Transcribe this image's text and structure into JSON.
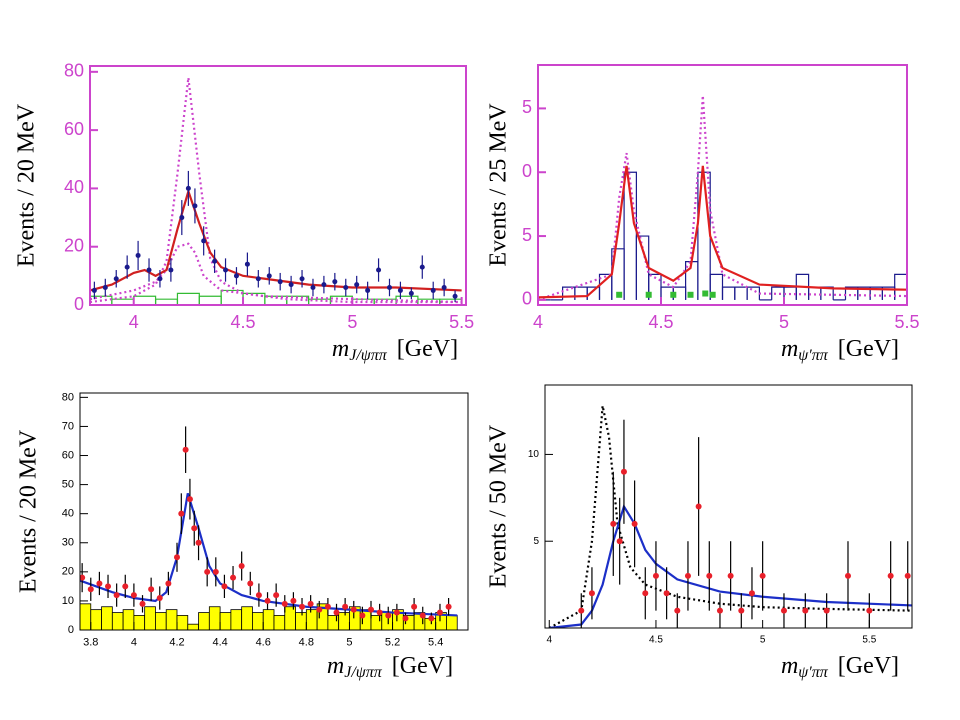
{
  "chart_data": [
    {
      "type": "scatter",
      "ylabel": "Events / 20 MeV",
      "xlabel": {
        "symbol": "m",
        "subscript": "J/ψππ",
        "unit": "[GeV]"
      },
      "xlim": [
        3.8,
        5.52
      ],
      "ylim": [
        0,
        82
      ],
      "xticks": [
        4,
        4.5,
        5,
        5.5
      ],
      "yticks": [
        0,
        20,
        40,
        60,
        80
      ],
      "frame_color": "#cc44cc",
      "tick_color": "#cc44cc",
      "series": [
        {
          "style": "histogram",
          "color": "#33bb33",
          "bins": [
            3.8,
            3.9,
            4,
            4.1,
            4.2,
            4.3,
            4.4,
            4.5,
            4.6,
            4.7,
            4.8,
            4.9,
            5,
            5.1,
            5.2,
            5.3,
            5.4,
            5.5
          ],
          "values": [
            3,
            2,
            3,
            2,
            4,
            3,
            5,
            4,
            3,
            3,
            2,
            3,
            2,
            2,
            3,
            2,
            2
          ]
        },
        {
          "style": "line",
          "color": "#cc44cc",
          "dash": "dotted",
          "x": [
            3.8,
            4,
            4.1,
            4.15,
            4.2,
            4.25,
            4.3,
            4.35,
            4.4,
            4.5,
            4.7,
            5,
            5.5
          ],
          "values": [
            1,
            3,
            7,
            15,
            45,
            78,
            45,
            16,
            8,
            4,
            2,
            1,
            1
          ]
        },
        {
          "style": "line",
          "color": "#cc44cc",
          "dash": "dotted",
          "x": [
            3.8,
            4,
            4.1,
            4.15,
            4.2,
            4.25,
            4.28,
            4.32,
            4.4,
            4.6,
            5,
            5.5
          ],
          "values": [
            2,
            5,
            8,
            12,
            20,
            21,
            18,
            10,
            5,
            3,
            2,
            1
          ]
        },
        {
          "style": "line",
          "color": "#d02020",
          "x": [
            3.8,
            3.9,
            4,
            4.05,
            4.1,
            4.15,
            4.2,
            4.25,
            4.3,
            4.35,
            4.4,
            4.5,
            4.6,
            4.8,
            5,
            5.2,
            5.5
          ],
          "values": [
            5,
            7,
            11,
            12,
            10,
            12,
            26,
            39,
            28,
            18,
            13,
            10,
            9,
            7,
            6,
            6,
            5
          ]
        },
        {
          "style": "points",
          "marker": "circle",
          "color": "#1a1a8c",
          "x": [
            3.82,
            3.87,
            3.92,
            3.97,
            4.02,
            4.07,
            4.12,
            4.17,
            4.22,
            4.25,
            4.28,
            4.32,
            4.37,
            4.42,
            4.47,
            4.52,
            4.57,
            4.62,
            4.67,
            4.72,
            4.77,
            4.82,
            4.87,
            4.92,
            4.97,
            5.02,
            5.07,
            5.12,
            5.17,
            5.22,
            5.27,
            5.32,
            5.37,
            5.42,
            5.47
          ],
          "values": [
            5,
            6,
            9,
            13,
            17,
            12,
            9,
            12,
            30,
            40,
            34,
            22,
            15,
            12,
            10,
            14,
            9,
            10,
            8,
            7,
            9,
            6,
            7,
            8,
            6,
            7,
            5,
            12,
            6,
            5,
            4,
            13,
            5,
            6,
            3
          ],
          "errors": [
            3,
            3,
            3,
            4,
            5,
            4,
            3,
            4,
            6,
            6,
            6,
            5,
            4,
            4,
            3,
            4,
            3,
            3,
            3,
            3,
            3,
            3,
            3,
            3,
            3,
            3,
            3,
            4,
            3,
            3,
            2,
            4,
            3,
            3,
            2
          ]
        }
      ]
    },
    {
      "type": "scatter",
      "ylabel": "Events / 25 MeV",
      "xlabel": {
        "symbol": "m",
        "subscript": "ψ′ππ",
        "unit": "[GeV]"
      },
      "xlim": [
        4,
        5.5
      ],
      "ylim": [
        -0.4,
        18.4
      ],
      "xticks": [
        4,
        4.5,
        5,
        5.5
      ],
      "yticks": [
        0,
        5,
        {
          "value": 10,
          "label": "0"
        },
        {
          "value": 15,
          "label": "5"
        }
      ],
      "frame_color": "#cc44cc",
      "tick_color": "#cc44cc",
      "series": [
        {
          "style": "histogram",
          "color": "#1a1a8c",
          "bins": [
            4,
            4.05,
            4.1,
            4.15,
            4.2,
            4.25,
            4.3,
            4.35,
            4.4,
            4.45,
            4.5,
            4.55,
            4.6,
            4.65,
            4.7,
            4.75,
            4.8,
            4.85,
            4.9,
            4.95,
            5,
            5.05,
            5.1,
            5.15,
            5.2,
            5.25,
            5.3,
            5.35,
            5.4,
            5.45,
            5.5
          ],
          "values": [
            0,
            0,
            1,
            1,
            1,
            2,
            4,
            10,
            5,
            2,
            1,
            1,
            3,
            10,
            2,
            1,
            1,
            1,
            0,
            1,
            1,
            2,
            1,
            1,
            0,
            1,
            1,
            1,
            1,
            2
          ]
        },
        {
          "style": "line",
          "color": "#cc44cc",
          "dash": "dotted",
          "x": [
            4,
            4.3,
            4.33,
            4.36,
            4.39,
            4.45,
            4.55,
            4.62,
            4.65,
            4.67,
            4.7,
            4.75,
            4.9,
            5.5
          ],
          "values": [
            0,
            2,
            8,
            11.5,
            7,
            2,
            1,
            3,
            10,
            16,
            7,
            2,
            0.5,
            0.3
          ]
        },
        {
          "style": "line",
          "color": "#e02020",
          "x": [
            4,
            4.2,
            4.3,
            4.33,
            4.36,
            4.39,
            4.45,
            4.55,
            4.62,
            4.65,
            4.67,
            4.7,
            4.75,
            4.9,
            5.2,
            5.5
          ],
          "values": [
            0.2,
            0.3,
            2,
            6,
            10.5,
            6,
            2.5,
            1.5,
            2.5,
            6,
            10.5,
            5,
            2.5,
            1.2,
            0.9,
            0.8
          ]
        },
        {
          "style": "points",
          "marker": "square",
          "color": "#33bb33",
          "x": [
            4.33,
            4.45,
            4.55,
            4.62,
            4.68,
            4.71
          ],
          "values": [
            0.4,
            0.4,
            0.4,
            0.4,
            0.5,
            0.4
          ]
        }
      ]
    },
    {
      "type": "scatter",
      "ylabel": "Events / 20 MeV",
      "xlabel": {
        "symbol": "m",
        "subscript": "J/ψππ",
        "unit": "[GeV]"
      },
      "xlim": [
        3.75,
        5.55
      ],
      "ylim": [
        0,
        81.5
      ],
      "xticks": [
        3.8,
        4,
        4.2,
        4.4,
        4.6,
        4.8,
        5,
        5.2,
        5.4
      ],
      "yticks": [
        0,
        10,
        20,
        30,
        40,
        50,
        60,
        70,
        80
      ],
      "frame_color": "#000000",
      "tick_color": "#000000",
      "series": [
        {
          "style": "histogram",
          "color": "#000000",
          "fill": "#ffff00",
          "bins": [
            3.75,
            3.8,
            3.85,
            3.9,
            3.95,
            4,
            4.05,
            4.1,
            4.15,
            4.2,
            4.25,
            4.3,
            4.35,
            4.4,
            4.45,
            4.5,
            4.55,
            4.6,
            4.65,
            4.7,
            4.75,
            4.8,
            4.85,
            4.9,
            4.95,
            5,
            5.05,
            5.1,
            5.15,
            5.2,
            5.25,
            5.3,
            5.35,
            5.4,
            5.45,
            5.5
          ],
          "values": [
            9,
            7,
            8,
            6,
            7,
            5,
            8,
            6,
            7,
            5,
            2,
            6,
            8,
            6,
            7,
            8,
            6,
            7,
            5,
            8,
            6,
            7,
            9,
            5,
            6,
            8,
            7,
            5,
            6,
            7,
            5,
            6,
            4,
            6,
            5
          ]
        },
        {
          "style": "line",
          "color": "#1c2fc8",
          "x": [
            3.75,
            3.9,
            4,
            4.1,
            4.15,
            4.2,
            4.25,
            4.3,
            4.35,
            4.4,
            4.5,
            4.6,
            4.8,
            5,
            5.2,
            5.5
          ],
          "values": [
            17,
            13,
            11,
            10,
            13,
            25,
            47,
            35,
            22,
            16,
            12,
            10,
            8,
            7,
            6,
            5
          ]
        },
        {
          "style": "points",
          "marker": "circle",
          "color": "#e8202a",
          "x": [
            3.76,
            3.8,
            3.84,
            3.88,
            3.92,
            3.96,
            4,
            4.04,
            4.08,
            4.12,
            4.16,
            4.2,
            4.22,
            4.24,
            4.26,
            4.28,
            4.3,
            4.34,
            4.38,
            4.42,
            4.46,
            4.5,
            4.54,
            4.58,
            4.62,
            4.66,
            4.7,
            4.74,
            4.78,
            4.82,
            4.86,
            4.9,
            4.94,
            4.98,
            5.02,
            5.06,
            5.1,
            5.14,
            5.18,
            5.22,
            5.26,
            5.3,
            5.34,
            5.38,
            5.42,
            5.46
          ],
          "values": [
            18,
            14,
            16,
            15,
            12,
            15,
            12,
            9,
            14,
            11,
            16,
            25,
            40,
            62,
            45,
            35,
            30,
            20,
            20,
            15,
            18,
            22,
            16,
            12,
            10,
            12,
            9,
            10,
            8,
            9,
            7,
            8,
            6,
            8,
            7,
            5,
            7,
            6,
            5,
            6,
            4,
            8,
            5,
            4,
            6,
            8
          ],
          "errors": [
            5,
            4,
            4,
            4,
            4,
            4,
            4,
            3,
            4,
            4,
            4,
            5,
            7,
            8,
            7,
            6,
            6,
            5,
            5,
            4,
            4,
            5,
            4,
            4,
            3,
            4,
            3,
            3,
            3,
            3,
            3,
            3,
            3,
            3,
            3,
            3,
            3,
            3,
            3,
            3,
            2,
            3,
            3,
            2,
            3,
            3
          ]
        }
      ]
    },
    {
      "type": "scatter",
      "ylabel": "Events / 50 MeV",
      "xlabel": {
        "symbol": "m",
        "subscript": "ψ′ππ",
        "unit": "[GeV]"
      },
      "xlim": [
        3.98,
        5.7
      ],
      "ylim": [
        0,
        14
      ],
      "xticks": [
        4,
        4.5,
        5,
        5.5
      ],
      "yticks": [
        5,
        10
      ],
      "frame_color": "#000000",
      "tick_color": "#000000",
      "series": [
        {
          "style": "line",
          "color": "#000000",
          "dash": "dotted",
          "x": [
            4,
            4.15,
            4.2,
            4.25,
            4.28,
            4.32,
            4.38,
            4.45,
            4.6,
            4.8,
            5,
            5.3,
            5.7
          ],
          "values": [
            0,
            1,
            5,
            12.8,
            11,
            6,
            3.5,
            2.5,
            1.8,
            1.4,
            1.2,
            1.1,
            1
          ]
        },
        {
          "style": "line",
          "color": "#1c2fc8",
          "x": [
            4,
            4.15,
            4.2,
            4.25,
            4.3,
            4.35,
            4.4,
            4.45,
            4.5,
            4.6,
            4.8,
            5,
            5.3,
            5.7
          ],
          "values": [
            0,
            0.2,
            1,
            2.5,
            5,
            7,
            6,
            4.5,
            3.7,
            2.8,
            2.1,
            1.8,
            1.5,
            1.3
          ]
        },
        {
          "style": "points",
          "marker": "circle",
          "color": "#e8202a",
          "x": [
            4.15,
            4.2,
            4.3,
            4.33,
            4.35,
            4.4,
            4.45,
            4.5,
            4.55,
            4.6,
            4.65,
            4.7,
            4.75,
            4.8,
            4.85,
            4.9,
            4.95,
            5,
            5.1,
            5.2,
            5.3,
            5.4,
            5.5,
            5.6,
            5.68
          ],
          "values": [
            1,
            2,
            6,
            5,
            9,
            6,
            2,
            3,
            2,
            1,
            3,
            7,
            3,
            1,
            3,
            1,
            2,
            3,
            1,
            1,
            1,
            3,
            1,
            3,
            3
          ],
          "errors": [
            1,
            1.5,
            3,
            2.5,
            3,
            2.5,
            1.5,
            2,
            1.5,
            1,
            2,
            4,
            2,
            1,
            2,
            1,
            1.5,
            2,
            1,
            1,
            1,
            2,
            1,
            2,
            2
          ]
        }
      ]
    }
  ]
}
